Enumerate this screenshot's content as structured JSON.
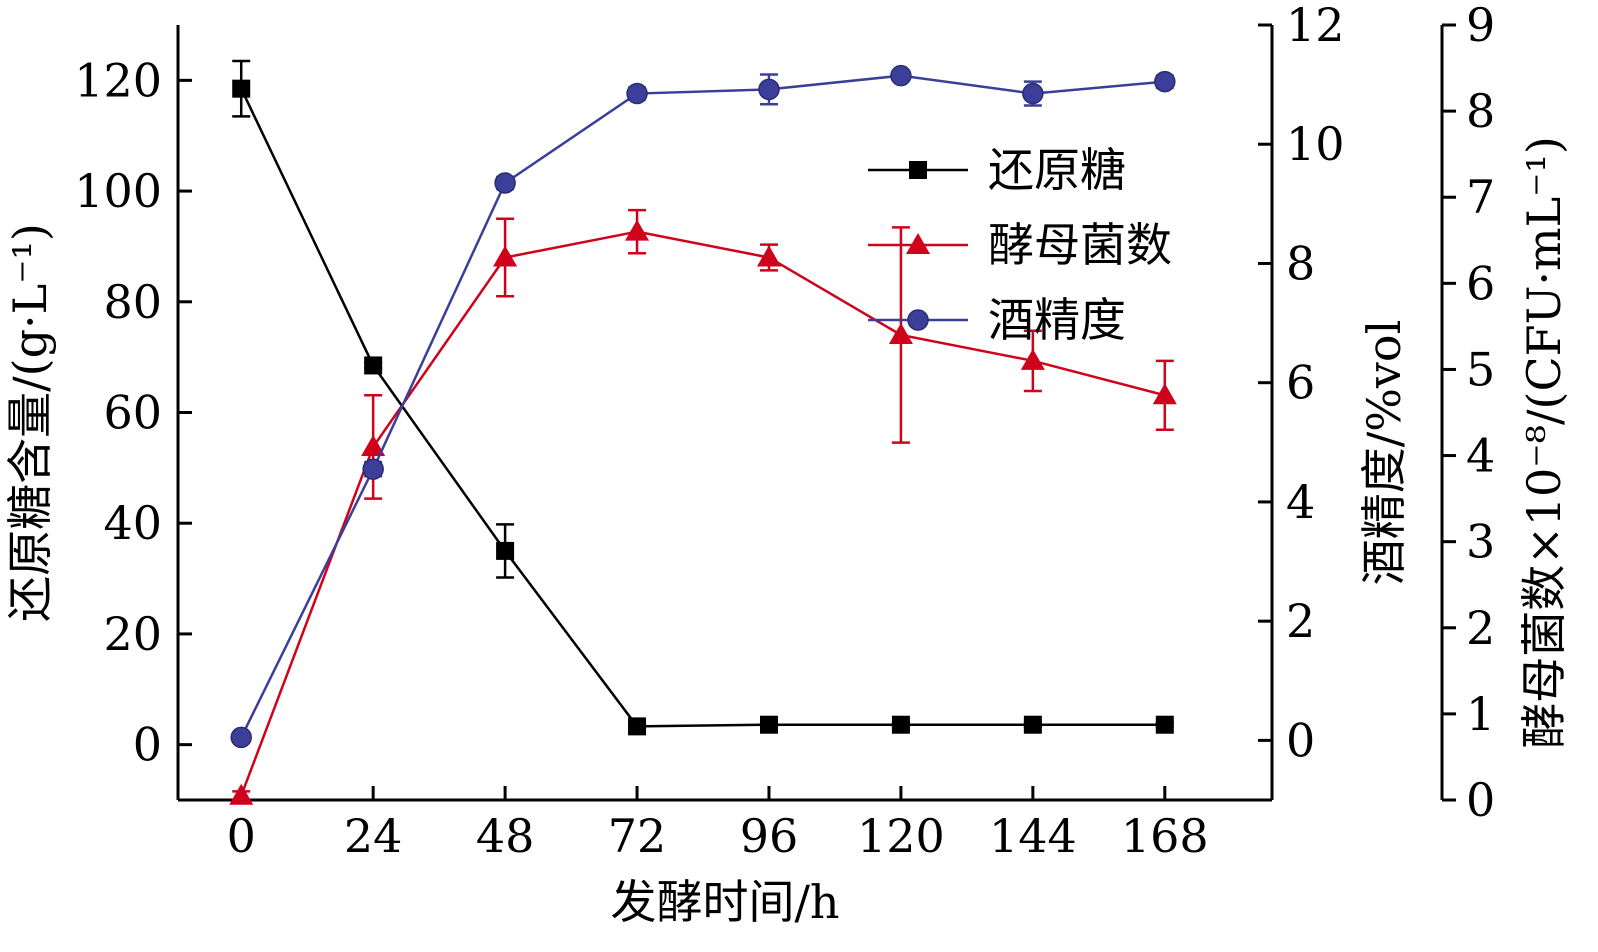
{
  "chart_data": {
    "type": "line",
    "x": [
      0,
      24,
      48,
      72,
      96,
      120,
      144,
      168
    ],
    "xlabel": "发酵时间/h",
    "xticks": [
      "0",
      "24",
      "48",
      "72",
      "96",
      "120",
      "144",
      "168"
    ],
    "axes": {
      "left": {
        "label": "还原糖含量/(g·L⁻¹)",
        "range": [
          -10,
          130
        ],
        "ticks": [
          0,
          20,
          40,
          60,
          80,
          100,
          120
        ],
        "tick_labels": [
          "0",
          "20",
          "40",
          "60",
          "80",
          "100",
          "120"
        ]
      },
      "right1": {
        "label": "酒精度/%vol",
        "range": [
          -1,
          12
        ],
        "ticks": [
          0,
          2,
          4,
          6,
          8,
          10,
          12
        ],
        "tick_labels": [
          "0",
          "2",
          "4",
          "6",
          "8",
          "10",
          "12"
        ]
      },
      "right2": {
        "label": "酵母菌数×10⁻⁸/(CFU·mL⁻¹)",
        "range": [
          0,
          9
        ],
        "ticks": [
          0,
          1,
          2,
          3,
          4,
          5,
          6,
          7,
          8,
          9
        ],
        "tick_labels": [
          "0",
          "1",
          "2",
          "3",
          "4",
          "5",
          "6",
          "7",
          "8",
          "9"
        ]
      }
    },
    "series": [
      {
        "name": "还原糖",
        "axis": "left",
        "color": "#000000",
        "marker": "square",
        "values": [
          118.5,
          68.5,
          35,
          3.3,
          3.6,
          3.6,
          3.6,
          3.6
        ],
        "errors": [
          5,
          0.5,
          4.8,
          0.4,
          0.4,
          0.4,
          0.4,
          0.4
        ]
      },
      {
        "name": "酵母菌数",
        "axis": "right2",
        "color": "#d0021b",
        "marker": "triangle",
        "values": [
          0.05,
          4.1,
          6.3,
          6.6,
          6.3,
          5.4,
          5.1,
          4.7
        ],
        "errors": [
          0.05,
          0.6,
          0.45,
          0.25,
          0.15,
          1.25,
          0.35,
          0.4
        ]
      },
      {
        "name": "酒精度",
        "axis": "right1",
        "color": "#3b3f99",
        "marker": "circle",
        "values": [
          0.05,
          4.55,
          9.35,
          10.85,
          10.92,
          11.15,
          10.85,
          11.05
        ],
        "errors": [
          0.05,
          0.12,
          0.1,
          0.1,
          0.25,
          0.05,
          0.2,
          0.1
        ]
      }
    ],
    "legend": "top-right inside plot"
  }
}
